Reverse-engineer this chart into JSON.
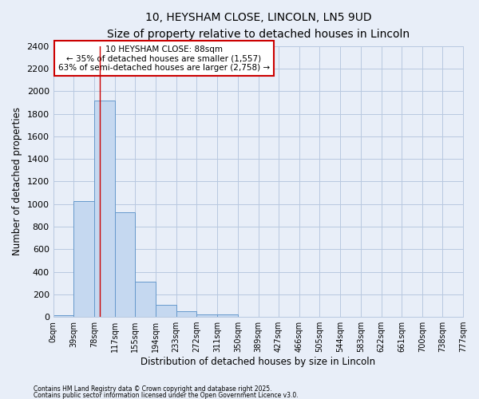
{
  "title1": "10, HEYSHAM CLOSE, LINCOLN, LN5 9UD",
  "title2": "Size of property relative to detached houses in Lincoln",
  "xlabel": "Distribution of detached houses by size in Lincoln",
  "ylabel": "Number of detached properties",
  "bin_edges": [
    0,
    39,
    78,
    117,
    155,
    194,
    233,
    272,
    311,
    350,
    389,
    427,
    466,
    505,
    544,
    583,
    622,
    661,
    700,
    738,
    777
  ],
  "bar_heights": [
    15,
    1025,
    1920,
    930,
    310,
    105,
    50,
    25,
    20,
    0,
    0,
    0,
    0,
    0,
    0,
    0,
    0,
    0,
    0,
    0
  ],
  "bar_color": "#c5d8f0",
  "bar_edge_color": "#6699cc",
  "bg_color": "#e8eef8",
  "plot_bg_color": "#e8eef8",
  "grid_color": "#b8c8e0",
  "vline_x": 88,
  "vline_color": "#cc0000",
  "ylim": [
    0,
    2400
  ],
  "yticks": [
    0,
    200,
    400,
    600,
    800,
    1000,
    1200,
    1400,
    1600,
    1800,
    2000,
    2200,
    2400
  ],
  "annotation_text": "10 HEYSHAM CLOSE: 88sqm\n← 35% of detached houses are smaller (1,557)\n63% of semi-detached houses are larger (2,758) →",
  "annotation_box_color": "#ffffff",
  "annotation_box_edge": "#cc0000",
  "footer1": "Contains HM Land Registry data © Crown copyright and database right 2025.",
  "footer2": "Contains public sector information licensed under the Open Government Licence v3.0.",
  "tick_labels": [
    "0sqm",
    "39sqm",
    "78sqm",
    "117sqm",
    "155sqm",
    "194sqm",
    "233sqm",
    "272sqm",
    "311sqm",
    "350sqm",
    "389sqm",
    "427sqm",
    "466sqm",
    "505sqm",
    "544sqm",
    "583sqm",
    "622sqm",
    "661sqm",
    "700sqm",
    "738sqm",
    "777sqm"
  ]
}
